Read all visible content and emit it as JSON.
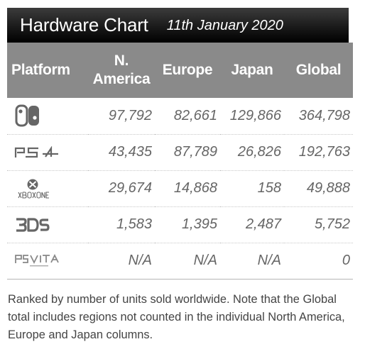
{
  "header": {
    "title": "Hardware Chart",
    "date": "11th January 2020"
  },
  "columns": {
    "platform": "Platform",
    "north_america": "N. America",
    "europe": "Europe",
    "japan": "Japan",
    "global": "Global"
  },
  "rows": [
    {
      "platform_icon": "nintendo-switch-logo-icon",
      "north_america": "97,792",
      "europe": "82,661",
      "japan": "129,866",
      "global": "364,798"
    },
    {
      "platform_icon": "ps4-logo-icon",
      "north_america": "43,435",
      "europe": "87,789",
      "japan": "26,826",
      "global": "192,763"
    },
    {
      "platform_icon": "xbox-one-logo-icon",
      "north_america": "29,674",
      "europe": "14,868",
      "japan": "158",
      "global": "49,888"
    },
    {
      "platform_icon": "3ds-logo-icon",
      "north_america": "1,583",
      "europe": "1,395",
      "japan": "2,487",
      "global": "5,752"
    },
    {
      "platform_icon": "ps-vita-logo-icon",
      "north_america": "N/A",
      "europe": "N/A",
      "japan": "N/A",
      "global": "0"
    }
  ],
  "footnote": "Ranked by number of units sold worldwide. Note that the Global total includes regions not counted in the individual North America, Europe and Japan columns.",
  "colors": {
    "title_bar": "#000000",
    "header_bg": "#8a8a8a",
    "value_text": "#666666"
  }
}
